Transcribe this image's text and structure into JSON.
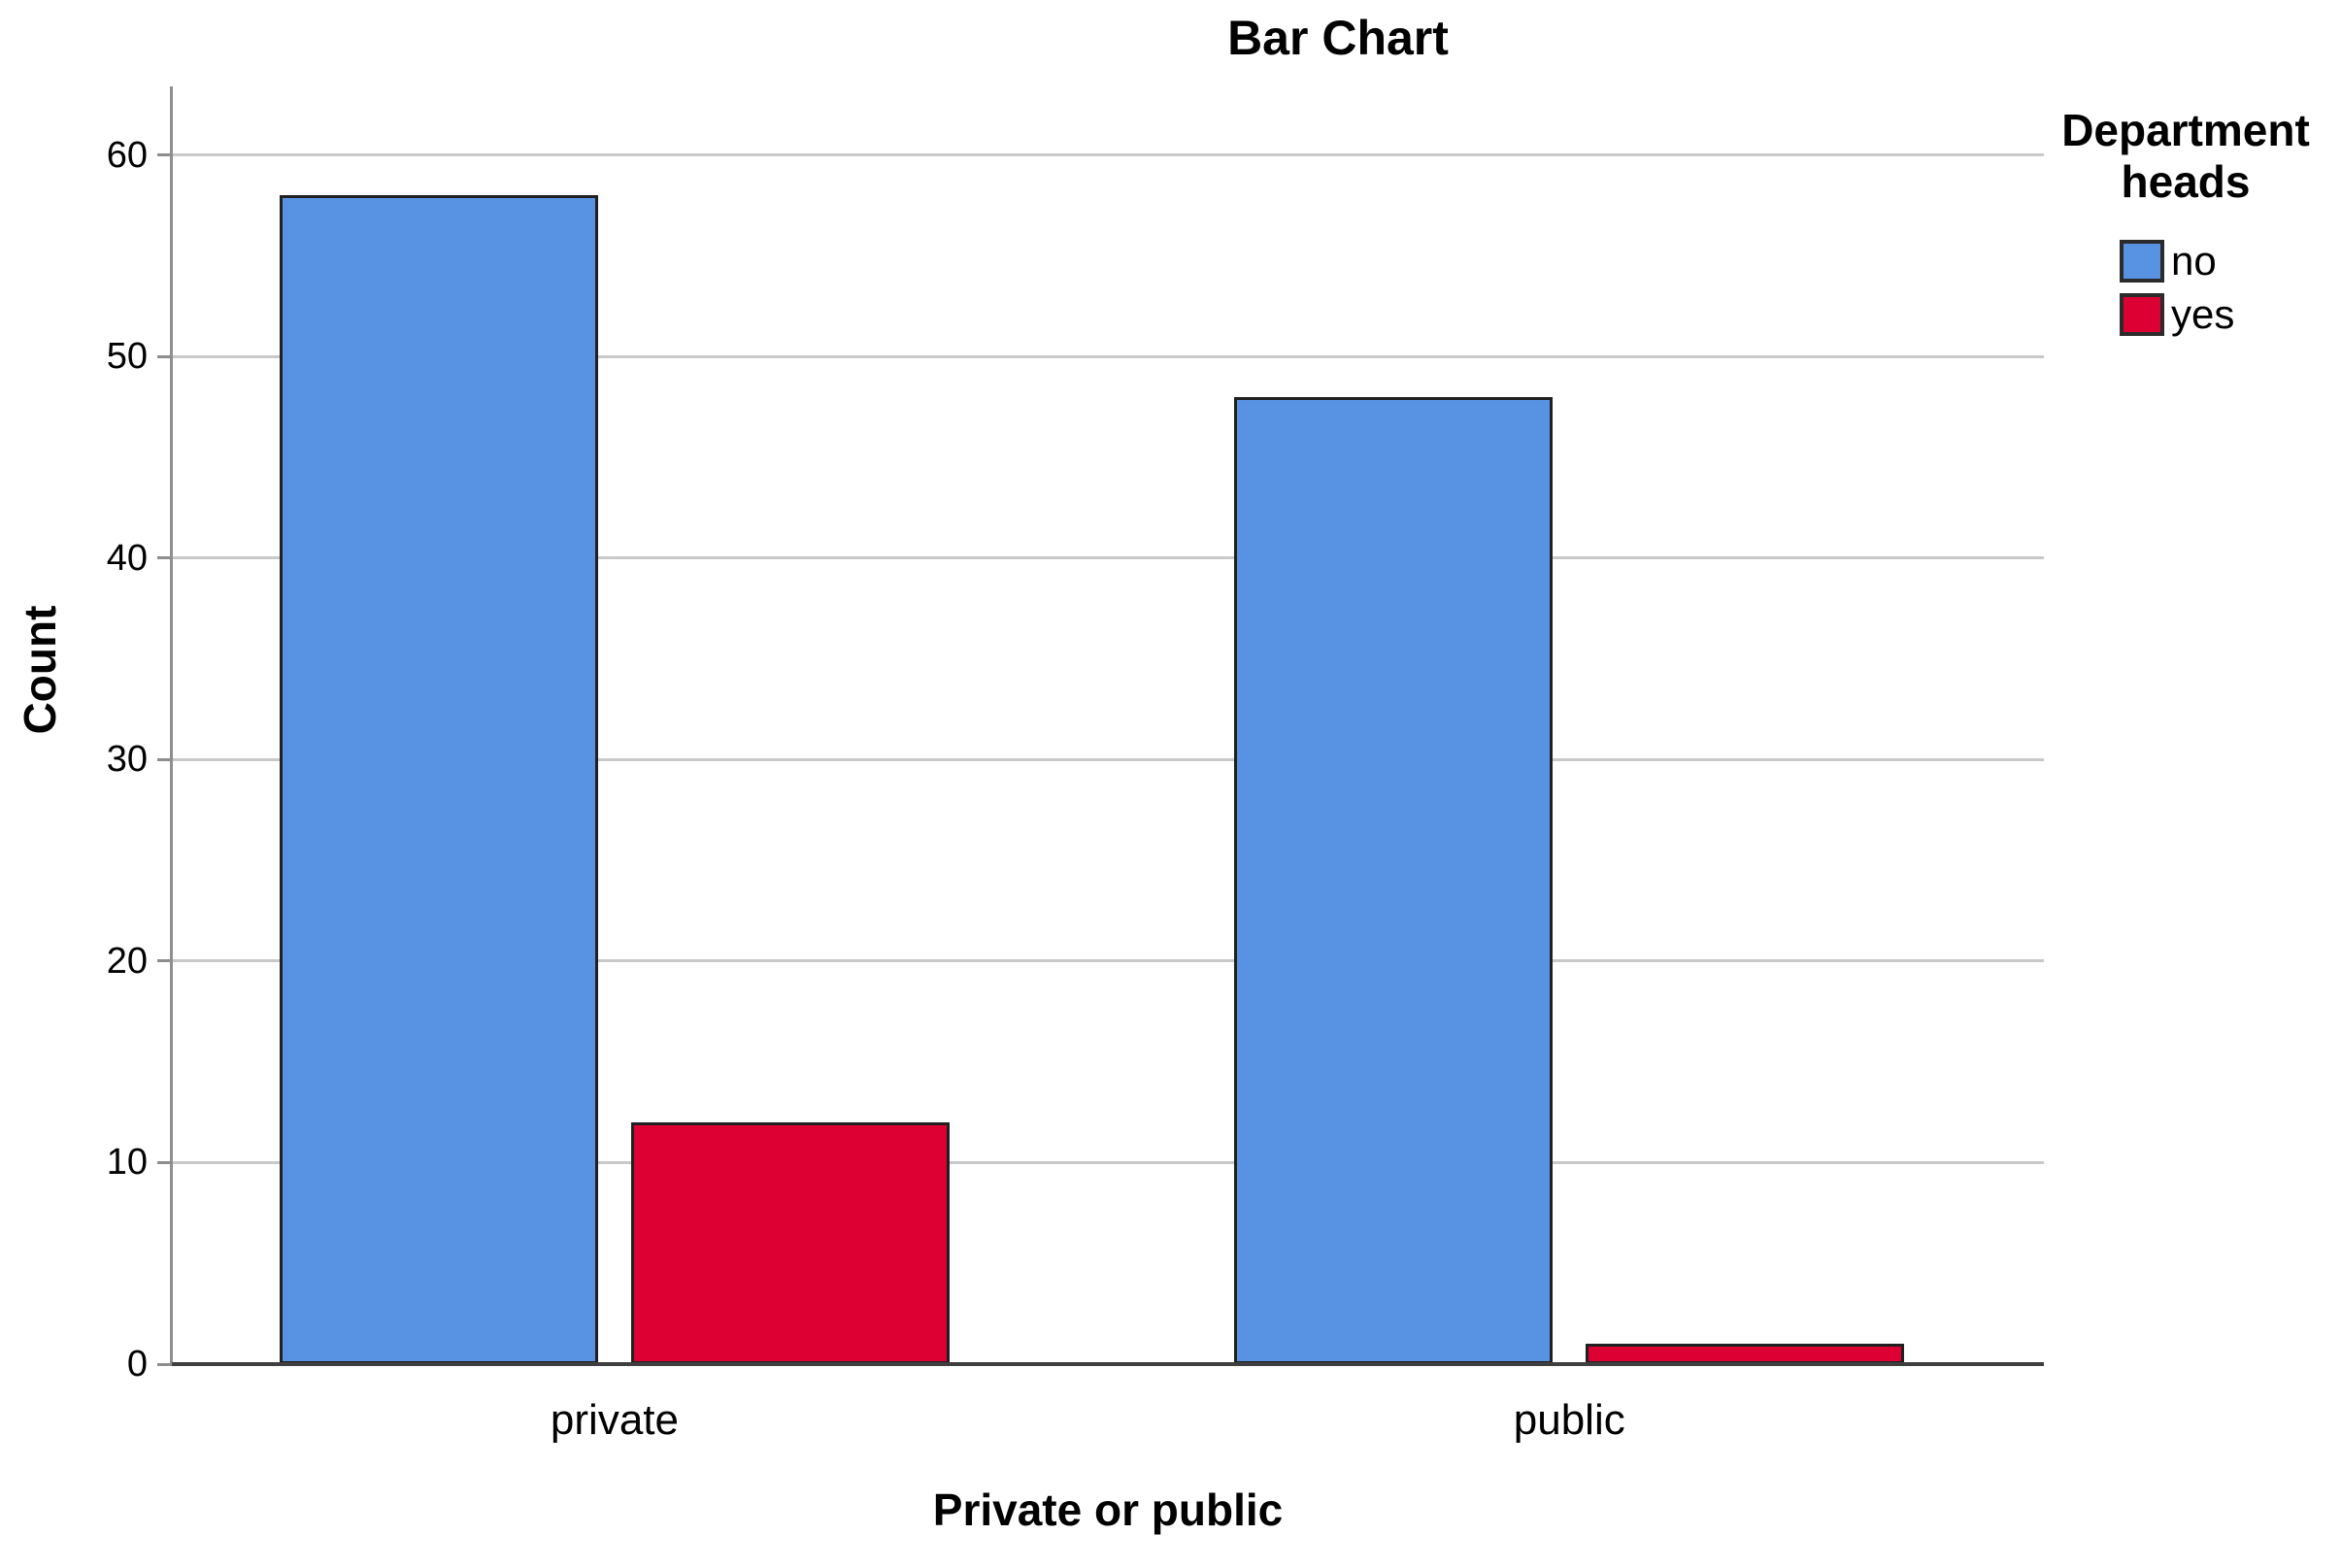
{
  "chart_data": {
    "type": "bar",
    "title": "Bar Chart",
    "xlabel": "Private or public",
    "ylabel": "Count",
    "categories": [
      "private",
      "public"
    ],
    "series": [
      {
        "name": "no",
        "color": "#5793E2",
        "values": [
          58,
          48
        ]
      },
      {
        "name": "yes",
        "color": "#DC0033",
        "values": [
          12,
          1
        ]
      }
    ],
    "ylim": [
      0,
      63.4
    ],
    "yticks": [
      0,
      10,
      20,
      30,
      40,
      50,
      60
    ],
    "grid": true,
    "legend": {
      "title": "Department heads",
      "position": "right"
    }
  },
  "colors": {
    "bar_border": "#202020",
    "gridline": "#c9c9c9",
    "y_axis_line": "#8e8e8e",
    "x_axis_line": "#3f3f3f",
    "text": "#000000",
    "background": "#ffffff"
  }
}
